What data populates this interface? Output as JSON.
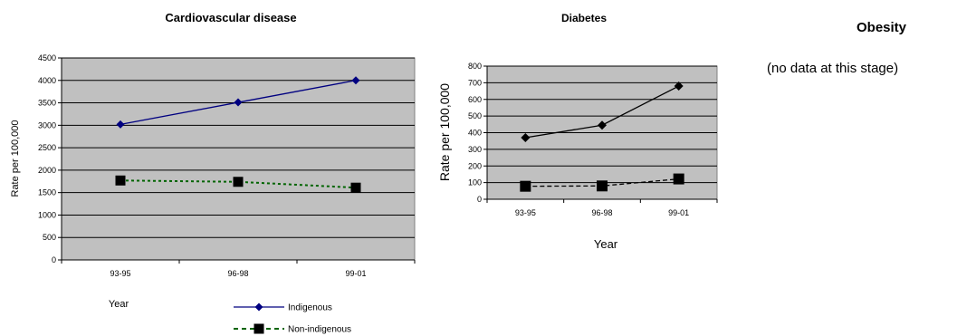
{
  "obesity": {
    "title": "Obesity",
    "note": "(no data at this stage)"
  },
  "chart_data": [
    {
      "type": "line",
      "title": "Cardiovascular disease",
      "xlabel": "Year",
      "ylabel": "Rate per 100,000",
      "categories": [
        "93-95",
        "96-98",
        "99-01"
      ],
      "ylim": [
        0,
        4500
      ],
      "yticks": [
        0,
        500,
        1000,
        1500,
        2000,
        2500,
        3000,
        3500,
        4000,
        4500
      ],
      "grid": true,
      "legend_position": "bottom-right",
      "series": [
        {
          "name": "Indigenous",
          "values": [
            3020,
            3510,
            4000
          ],
          "color": "#000080",
          "marker": "diamond",
          "dash": "solid"
        },
        {
          "name": "Non-indigenous",
          "values": [
            1770,
            1740,
            1610
          ],
          "color": "#006400",
          "marker": "square",
          "dash": "dotted"
        }
      ]
    },
    {
      "type": "line",
      "title": "Diabetes",
      "xlabel": "Year",
      "ylabel": "Rate per 100,000",
      "categories": [
        "93-95",
        "96-98",
        "99-01"
      ],
      "ylim": [
        0,
        800
      ],
      "yticks": [
        0,
        100,
        200,
        300,
        400,
        500,
        600,
        700,
        800
      ],
      "grid": true,
      "series": [
        {
          "values": [
            370,
            445,
            680
          ],
          "color": "#000000",
          "marker": "diamond",
          "dash": "solid"
        },
        {
          "values": [
            78,
            80,
            122
          ],
          "color": "#000000",
          "marker": "square",
          "dash": "dashed"
        }
      ]
    }
  ]
}
